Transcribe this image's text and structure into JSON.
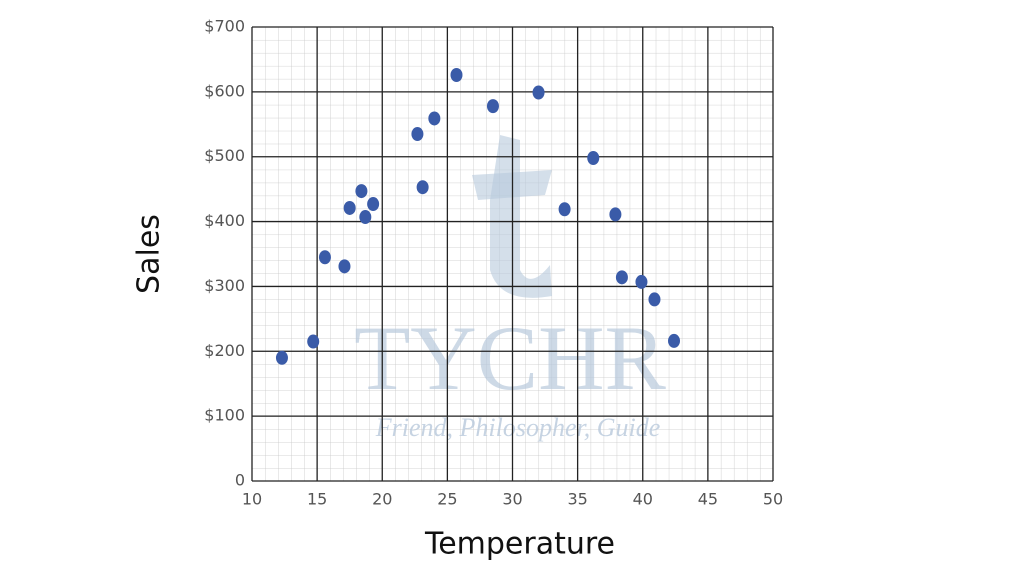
{
  "chart_data": {
    "type": "scatter",
    "x_label": "Temperature",
    "y_label": "Sales",
    "watermark": {
      "title": "TYCHR",
      "tagline": "Friend, Philosopher, Guide"
    },
    "x": [
      12.3,
      14.7,
      15.6,
      17.1,
      17.5,
      18.4,
      18.7,
      19.3,
      22.7,
      23.1,
      24.0,
      25.7,
      28.5,
      32.0,
      34.0,
      36.2,
      37.9,
      38.4,
      39.9,
      40.9,
      42.4
    ],
    "values": [
      190,
      215,
      345,
      331,
      421,
      447,
      407,
      427,
      535,
      453,
      559,
      626,
      578,
      599,
      419,
      498,
      411,
      314,
      307,
      280,
      216
    ],
    "color": "#3a5ba8",
    "xlim": [
      10,
      50
    ],
    "ylim": [
      0,
      700
    ],
    "xticks": [
      10,
      15,
      20,
      25,
      30,
      35,
      40,
      45,
      50
    ],
    "yticks": [
      0,
      {
        "value": 100,
        "label": "$100"
      },
      {
        "value": 200,
        "label": "$200"
      },
      {
        "value": 300,
        "label": "$300"
      },
      {
        "value": 400,
        "label": "$400"
      },
      {
        "value": 500,
        "label": "$500"
      },
      {
        "value": 600,
        "label": "$600"
      },
      {
        "value": 700,
        "label": "$700"
      }
    ],
    "grid": true
  }
}
